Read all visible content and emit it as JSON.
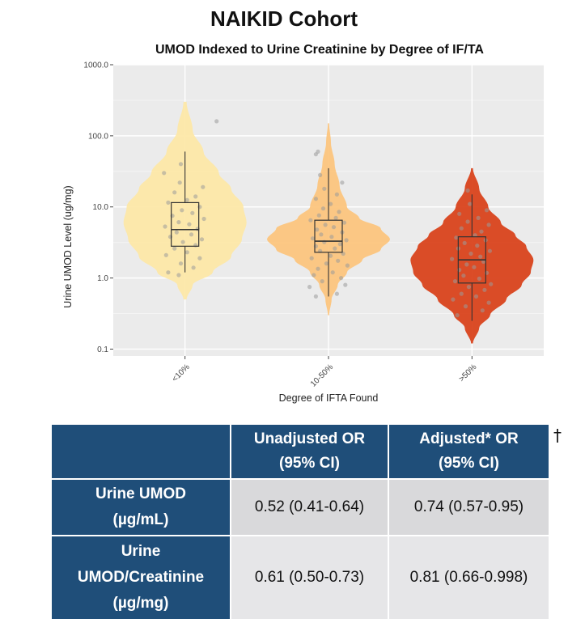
{
  "page": {
    "title": "NAIKID Cohort"
  },
  "chart_data": {
    "type": "violin",
    "title": "UMOD Indexed to Urine Creatinine by Degree of IF/TA",
    "xlabel": "Degree of IFTA Found",
    "ylabel": "Urine UMOD Level (ug/mg)",
    "y_scale": "log",
    "ylim": [
      0.08,
      1000
    ],
    "y_ticks": [
      {
        "value": 0.1,
        "label": "0.1"
      },
      {
        "value": 1,
        "label": "1.0"
      },
      {
        "value": 10,
        "label": "10.0"
      },
      {
        "value": 100,
        "label": "100.0"
      },
      {
        "value": 1000,
        "label": "1000.0"
      }
    ],
    "grid": true,
    "categories": [
      "<10%",
      "10-50%",
      ">50%"
    ],
    "groups": [
      {
        "category": "<10%",
        "color": "#fde8a8",
        "box": {
          "q1": 2.8,
          "median": 4.8,
          "q3": 11.5,
          "whisker_low": 1.2,
          "whisker_high": 60
        },
        "violin": {
          "min": 0.5,
          "max": 300,
          "profile": [
            [
              0.5,
              0.01
            ],
            [
              0.8,
              0.05
            ],
            [
              1.2,
              0.18
            ],
            [
              2,
              0.3
            ],
            [
              3.5,
              0.37
            ],
            [
              6,
              0.4
            ],
            [
              10,
              0.38
            ],
            [
              18,
              0.3
            ],
            [
              30,
              0.22
            ],
            [
              60,
              0.12
            ],
            [
              120,
              0.05
            ],
            [
              300,
              0.01
            ]
          ]
        },
        "points": [
          [
            -0.3,
            1.1
          ],
          [
            -0.8,
            1.2
          ],
          [
            0.4,
            1.4
          ],
          [
            -0.2,
            1.6
          ],
          [
            0.7,
            1.9
          ],
          [
            -0.9,
            2.1
          ],
          [
            0.1,
            2.3
          ],
          [
            -0.5,
            2.6
          ],
          [
            0.5,
            2.9
          ],
          [
            -0.1,
            3.2
          ],
          [
            0.8,
            3.5
          ],
          [
            -0.7,
            3.8
          ],
          [
            0.3,
            4.1
          ],
          [
            -0.4,
            4.4
          ],
          [
            0.6,
            4.9
          ],
          [
            -0.95,
            5.3
          ],
          [
            0.2,
            5.7
          ],
          [
            -0.3,
            6.1
          ],
          [
            0.9,
            6.8
          ],
          [
            -0.6,
            7.5
          ],
          [
            0.35,
            8.2
          ],
          [
            -0.15,
            9
          ],
          [
            0.7,
            10
          ],
          [
            -0.8,
            11.5
          ],
          [
            0.1,
            12.5
          ],
          [
            0.5,
            14
          ],
          [
            -0.5,
            16
          ],
          [
            0.85,
            19
          ],
          [
            -0.25,
            22
          ],
          [
            -1.0,
            30
          ],
          [
            -0.2,
            40
          ],
          [
            1.5,
            160
          ]
        ]
      },
      {
        "category": "10-50%",
        "color": "#fcc57e",
        "box": {
          "q1": 2.3,
          "median": 3.3,
          "q3": 6.5,
          "whisker_low": 0.55,
          "whisker_high": 35
        },
        "violin": {
          "min": 0.3,
          "max": 150,
          "profile": [
            [
              0.3,
              0.01
            ],
            [
              0.5,
              0.05
            ],
            [
              0.8,
              0.15
            ],
            [
              1.2,
              0.3
            ],
            [
              1.8,
              0.55
            ],
            [
              2.5,
              0.85
            ],
            [
              3.5,
              1.0
            ],
            [
              5,
              0.85
            ],
            [
              7,
              0.5
            ],
            [
              10,
              0.3
            ],
            [
              20,
              0.18
            ],
            [
              40,
              0.1
            ],
            [
              80,
              0.04
            ],
            [
              150,
              0.01
            ]
          ]
        },
        "points": [
          [
            -0.6,
            0.55
          ],
          [
            0.4,
            0.6
          ],
          [
            -0.9,
            0.75
          ],
          [
            0.8,
            0.8
          ],
          [
            -0.3,
            0.9
          ],
          [
            0.6,
            1.0
          ],
          [
            -0.7,
            1.1
          ],
          [
            0.2,
            1.2
          ],
          [
            -0.5,
            1.35
          ],
          [
            0.9,
            1.5
          ],
          [
            -0.1,
            1.6
          ],
          [
            0.45,
            1.75
          ],
          [
            -0.8,
            1.9
          ],
          [
            0.1,
            2.05
          ],
          [
            0.7,
            2.2
          ],
          [
            -0.4,
            2.4
          ],
          [
            0.3,
            2.6
          ],
          [
            -0.6,
            2.8
          ],
          [
            0.55,
            3.0
          ],
          [
            -0.2,
            3.2
          ],
          [
            0.85,
            3.4
          ],
          [
            -0.75,
            3.6
          ],
          [
            0.15,
            3.8
          ],
          [
            -0.35,
            4.1
          ],
          [
            0.65,
            4.4
          ],
          [
            -0.55,
            4.8
          ],
          [
            0.25,
            5.2
          ],
          [
            -0.15,
            5.6
          ],
          [
            0.75,
            6.0
          ],
          [
            -0.85,
            6.5
          ],
          [
            0.35,
            7.0
          ],
          [
            -0.45,
            7.6
          ],
          [
            0.5,
            8.5
          ],
          [
            -0.25,
            9.5
          ],
          [
            0.1,
            11
          ],
          [
            -0.6,
            13
          ],
          [
            0.4,
            15
          ],
          [
            -0.2,
            18
          ],
          [
            0.65,
            22
          ],
          [
            -0.4,
            28
          ],
          [
            -0.5,
            60
          ],
          [
            -0.6,
            55
          ]
        ]
      },
      {
        "category": ">50%",
        "color": "#d9431c",
        "box": {
          "q1": 0.85,
          "median": 1.8,
          "q3": 3.8,
          "whisker_low": 0.25,
          "whisker_high": 15
        },
        "violin": {
          "min": 0.12,
          "max": 35,
          "profile": [
            [
              0.12,
              0.01
            ],
            [
              0.2,
              0.08
            ],
            [
              0.3,
              0.2
            ],
            [
              0.5,
              0.38
            ],
            [
              0.8,
              0.55
            ],
            [
              1.2,
              0.65
            ],
            [
              1.8,
              0.68
            ],
            [
              2.8,
              0.6
            ],
            [
              4,
              0.48
            ],
            [
              6,
              0.32
            ],
            [
              10,
              0.18
            ],
            [
              18,
              0.08
            ],
            [
              35,
              0.01
            ]
          ]
        },
        "points": [
          [
            -0.7,
            0.3
          ],
          [
            0.5,
            0.35
          ],
          [
            -0.3,
            0.4
          ],
          [
            0.8,
            0.45
          ],
          [
            -0.9,
            0.5
          ],
          [
            0.2,
            0.55
          ],
          [
            -0.5,
            0.6
          ],
          [
            0.6,
            0.68
          ],
          [
            -0.15,
            0.75
          ],
          [
            0.9,
            0.82
          ],
          [
            -0.8,
            0.9
          ],
          [
            0.35,
            0.98
          ],
          [
            -0.4,
            1.08
          ],
          [
            0.7,
            1.18
          ],
          [
            -0.6,
            1.3
          ],
          [
            0.1,
            1.42
          ],
          [
            -0.25,
            1.55
          ],
          [
            0.55,
            1.7
          ],
          [
            -0.95,
            1.85
          ],
          [
            0.4,
            2.0
          ],
          [
            -0.05,
            2.2
          ],
          [
            0.85,
            2.4
          ],
          [
            -0.65,
            2.6
          ],
          [
            0.25,
            2.85
          ],
          [
            -0.35,
            3.1
          ],
          [
            0.65,
            3.4
          ],
          [
            -0.75,
            3.7
          ],
          [
            0.15,
            4.0
          ],
          [
            0.45,
            4.5
          ],
          [
            -0.5,
            5.0
          ],
          [
            0.8,
            5.6
          ],
          [
            -0.2,
            6.2
          ],
          [
            0.3,
            7.0
          ],
          [
            -0.6,
            8.0
          ],
          [
            0.7,
            9.0
          ],
          [
            -0.1,
            11
          ],
          [
            -0.2,
            17
          ]
        ]
      }
    ]
  },
  "table": {
    "headers": [
      "Unadjusted OR (95% CI)",
      "Adjusted* OR (95% CI)"
    ],
    "header_lines": [
      [
        "Unadjusted OR",
        "(95% CI)"
      ],
      [
        "Adjusted* OR",
        "(95% CI)"
      ]
    ],
    "rows": [
      {
        "label_lines": [
          "Urine UMOD",
          "(µg/mL)"
        ],
        "values": [
          "0.52 (0.41-0.64)",
          "0.74 (0.57-0.95)"
        ]
      },
      {
        "label_lines": [
          "Urine",
          "UMOD/Creatinine",
          "(µg/mg)"
        ],
        "values": [
          "0.61 (0.50-0.73)",
          "0.81 (0.66-0.998)"
        ]
      }
    ],
    "footnote_mark": "†"
  }
}
